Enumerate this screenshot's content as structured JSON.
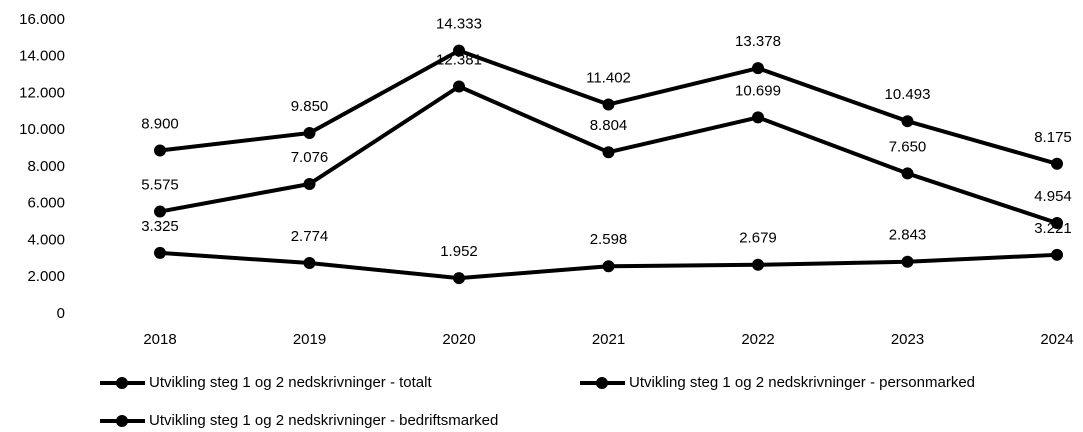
{
  "chart_data": {
    "type": "line",
    "categories": [
      "2018",
      "2019",
      "2020",
      "2021",
      "2022",
      "2023",
      "2024"
    ],
    "series": [
      {
        "name": "Utvikling steg 1 og 2 nedskrivninger - totalt",
        "color": "#000000",
        "values": [
          8900,
          9850,
          14333,
          11402,
          13378,
          10493,
          8175
        ],
        "value_labels": [
          "8.900",
          "9.850",
          "14.333",
          "11.402",
          "13.378",
          "10.493",
          "8.175"
        ]
      },
      {
        "name": "Utvikling steg 1 og 2 nedskrivninger - personmarked",
        "color": "#000000",
        "values": [
          5575,
          7076,
          12381,
          8804,
          10699,
          7650,
          4954
        ],
        "value_labels": [
          "5.575",
          "7.076",
          "12.381",
          "8.804",
          "10.699",
          "7.650",
          "4.954"
        ]
      },
      {
        "name": "Utvikling steg 1 og 2 nedskrivninger - bedriftsmarked",
        "color": "#000000",
        "values": [
          3325,
          2774,
          1952,
          2598,
          2679,
          2843,
          3221
        ],
        "value_labels": [
          "3.325",
          "2.774",
          "1.952",
          "2.598",
          "2.679",
          "2.843",
          "3.221"
        ]
      }
    ],
    "ylim": [
      0,
      16000
    ],
    "yticks": [
      0,
      {
        "value": 2000,
        "label": "2.000"
      },
      {
        "value": 4000,
        "label": "4.000"
      },
      {
        "value": 6000,
        "label": "6.000"
      },
      {
        "value": 8000,
        "label": "8.000"
      },
      {
        "value": 10000,
        "label": "10.000"
      },
      {
        "value": 12000,
        "label": "12.000"
      },
      {
        "value": 14000,
        "label": "14.000"
      },
      {
        "value": 16000,
        "label": "16.000"
      }
    ],
    "grid": false,
    "legend": "bottom"
  }
}
